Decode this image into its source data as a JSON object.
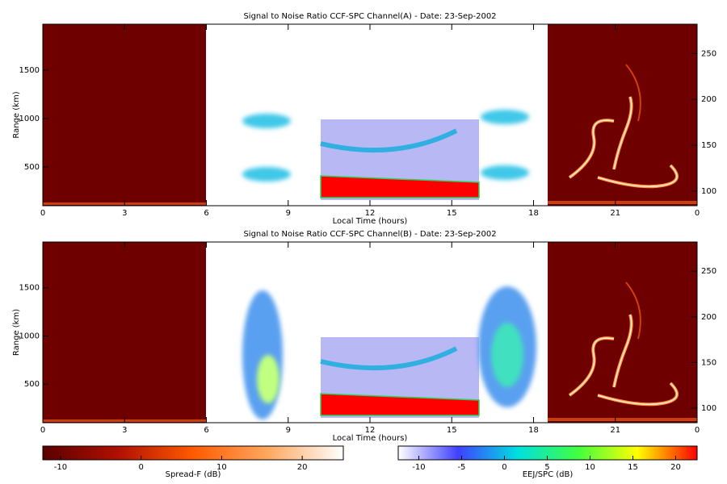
{
  "chart_data": [
    {
      "type": "heatmap",
      "title": "Signal to Noise Ratio CCF-SPC Channel(A) - Date: 23-Sep-2002",
      "xlabel": "Local Time (hours)",
      "ylabel": "Range (km)",
      "xlim": [
        0,
        24
      ],
      "xticks": [
        0,
        3,
        6,
        9,
        12,
        15,
        18,
        21,
        {
          "value": 24,
          "label": "0"
        }
      ],
      "ylim": [
        100,
        1975
      ],
      "yticks": [
        500,
        1000,
        1500
      ],
      "y2lim": [
        84,
        282
      ],
      "y2ticks": [
        100,
        150,
        200,
        250
      ]
    },
    {
      "type": "heatmap",
      "title": "Signal to Noise Ratio CCF-SPC Channel(B) - Date: 23-Sep-2002",
      "xlabel": "Local Time (hours)",
      "ylabel": "Range (km)",
      "xlim": [
        0,
        24
      ],
      "xticks": [
        0,
        3,
        6,
        9,
        12,
        15,
        18,
        21,
        {
          "value": 24,
          "label": "0"
        }
      ],
      "ylim": [
        100,
        1975
      ],
      "yticks": [
        500,
        1000,
        1500
      ],
      "y2lim": [
        84,
        282
      ],
      "y2ticks": [
        100,
        150,
        200,
        250
      ]
    },
    {
      "type": "colorbar",
      "label": "Spread-F (dB)",
      "lim": [
        -12.2,
        25.1
      ],
      "ticks": [
        -10,
        0,
        10,
        20
      ],
      "colors": [
        "#5a0000",
        "#b01000",
        "#ff5a00",
        "#ffa860",
        "#ffffff"
      ]
    },
    {
      "type": "colorbar",
      "label": "EEJ/SPC (dB)",
      "lim": [
        -12.4,
        22.5
      ],
      "ticks": [
        -10,
        -5,
        0,
        5,
        10,
        15,
        20
      ],
      "colors": [
        "#ffffff",
        "#4040ff",
        "#00e0e0",
        "#40ff40",
        "#ffff00",
        "#ff0000"
      ]
    }
  ]
}
